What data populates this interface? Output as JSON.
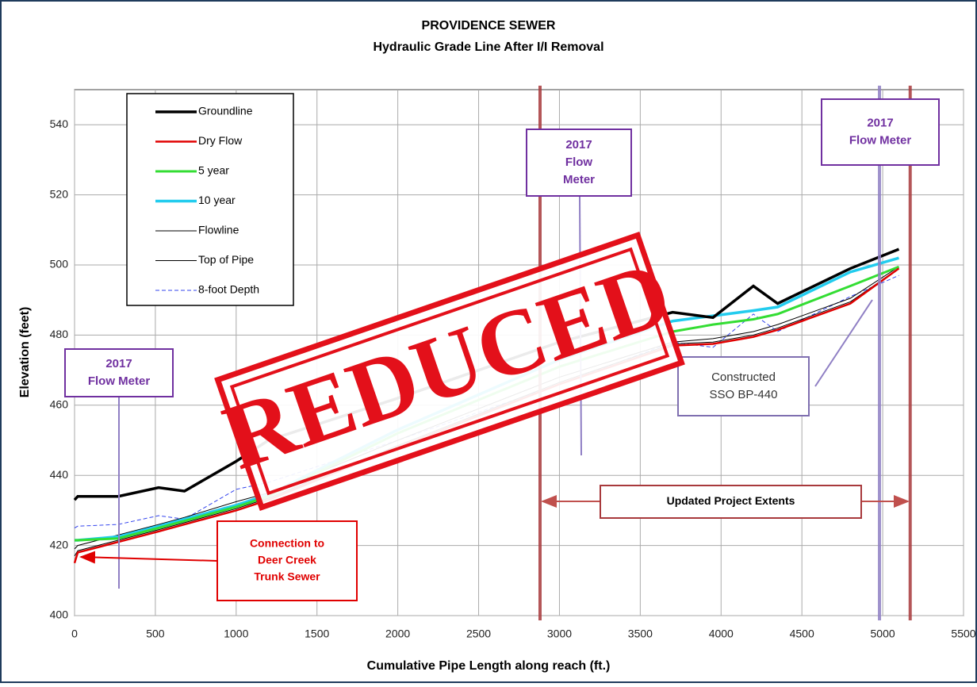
{
  "chart_data": {
    "type": "line",
    "title": "PROVIDENCE SEWER",
    "subtitle": "Hydraulic Grade Line After I/I Removal",
    "xlabel": "Cumulative Pipe Length along reach (ft.)",
    "ylabel": "Elevation (feet)",
    "xlim": [
      0,
      5500
    ],
    "xticks": [
      0,
      500,
      1000,
      1500,
      2000,
      2500,
      3000,
      3500,
      4000,
      4500,
      5000,
      5500
    ],
    "ylim": [
      400,
      550
    ],
    "yticks": [
      400,
      420,
      440,
      460,
      480,
      500,
      520,
      540
    ],
    "grid": true,
    "legend": "upper left",
    "x": [
      0,
      20,
      270,
      520,
      680,
      1000,
      1200,
      2000,
      3000,
      3700,
      3950,
      4200,
      4350,
      4800,
      5100
    ],
    "series": [
      {
        "name": "Groundline",
        "color": "#000000",
        "width": 3.5,
        "values": [
          433,
          434,
          434,
          436.5,
          435.5,
          444,
          450,
          462,
          478,
          486.5,
          485,
          494,
          489,
          499,
          504.5
        ]
      },
      {
        "name": "Dry Flow",
        "color": "#e00000",
        "width": 2.5,
        "values": [
          415,
          418,
          421,
          424,
          426,
          430,
          433,
          448,
          466,
          477,
          477.5,
          479.5,
          481.5,
          489,
          499
        ]
      },
      {
        "name": "5 year",
        "color": "#33dd33",
        "width": 3,
        "values": [
          421.5,
          421.5,
          422,
          425,
          427,
          431,
          434,
          452,
          471,
          481,
          483,
          484.5,
          486,
          494,
          499.5
        ]
      },
      {
        "name": "10 year",
        "color": "#22ccee",
        "width": 3.5,
        "values": [
          421.5,
          421.5,
          422.5,
          425.5,
          427.5,
          431.5,
          434.5,
          453,
          473,
          484,
          485.5,
          487,
          488,
          498,
          502
        ]
      },
      {
        "name": "Flowline",
        "color": "#000000",
        "width": 1,
        "values": [
          417,
          418.5,
          421.5,
          424.5,
          426.5,
          430.5,
          433.5,
          448.5,
          466.5,
          477.5,
          478,
          480,
          482,
          489.5,
          499
        ]
      },
      {
        "name": "Top of Pipe",
        "color": "#000000",
        "width": 1,
        "values": [
          419,
          420,
          423,
          426,
          428,
          432.5,
          435,
          450,
          468,
          478,
          479,
          481,
          483,
          490.5,
          499.5
        ]
      },
      {
        "name": "8-foot Depth",
        "color": "#3344ee",
        "width": 1,
        "dash": true,
        "values": [
          425,
          425.5,
          426,
          428.5,
          427.5,
          436,
          438,
          450,
          466,
          478,
          476.5,
          486,
          481,
          491,
          497
        ]
      }
    ],
    "reference_lines": [
      {
        "x": 2880,
        "color": "#a8393c"
      },
      {
        "x": 5170,
        "color": "#a8393c"
      },
      {
        "x": 4980,
        "color": "#8f7fc4"
      }
    ],
    "annotations": [
      {
        "lines": [
          "2017",
          "Flow Meter"
        ]
      },
      {
        "lines": [
          "2017",
          "Flow",
          "Meter"
        ]
      },
      {
        "lines": [
          "2017",
          "Flow Meter"
        ]
      },
      {
        "lines": [
          "Connection to",
          "Deer Creek",
          "Trunk Sewer"
        ]
      },
      {
        "lines": [
          "Constructed",
          "SSO BP-440"
        ]
      },
      {
        "lines": [
          "Updated Project Extents"
        ]
      }
    ],
    "stamp": "REDUCED"
  }
}
